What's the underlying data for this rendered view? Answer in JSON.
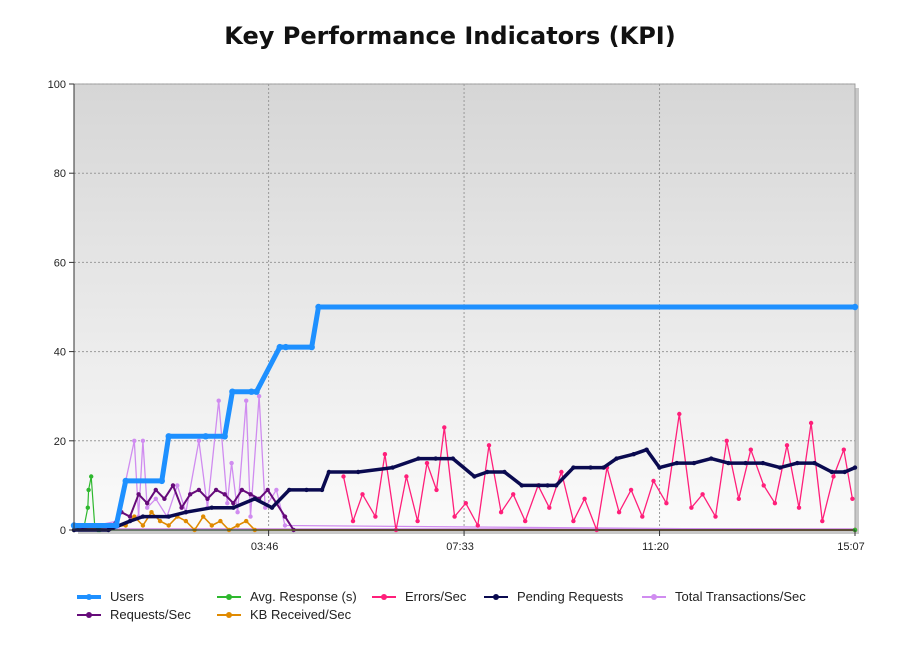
{
  "chart_data": {
    "type": "line",
    "title": "Key Performance Indicators (KPI)",
    "xlabel": "",
    "ylabel": "",
    "ylim": [
      0,
      100
    ],
    "yticks": [
      0,
      20,
      40,
      60,
      80,
      100
    ],
    "xlim": [
      "00:00",
      "15:07"
    ],
    "xticks": [
      "03:46",
      "07:33",
      "11:20",
      "15:07"
    ],
    "grid": true,
    "legend_placement": "bottom",
    "series": [
      {
        "name": "Users",
        "color": "#1e90ff",
        "x": [
          "00:00",
          "00:49",
          "01:00",
          "01:42",
          "01:50",
          "02:33",
          "02:55",
          "03:04",
          "03:26",
          "03:32",
          "03:59",
          "04:06",
          "04:36",
          "04:44",
          "15:07"
        ],
        "values": [
          1,
          1,
          11,
          11,
          21,
          21,
          21,
          31,
          31,
          31,
          41,
          41,
          41,
          50,
          50
        ]
      },
      {
        "name": "Avg. Response (s)",
        "color": "#2eb82e",
        "x": [
          "00:00",
          "00:12",
          "00:16",
          "00:17",
          "00:20",
          "00:24",
          "00:28",
          "00:30",
          "15:07"
        ],
        "values": [
          0,
          1,
          5,
          9,
          12,
          1,
          0,
          0,
          0
        ]
      },
      {
        "name": "Errors/Sec",
        "color": "#ff1f7a",
        "x": [
          "05:13",
          "05:24",
          "05:35",
          "05:50",
          "06:01",
          "06:14",
          "06:26",
          "06:39",
          "06:50",
          "07:01",
          "07:10",
          "07:22",
          "07:35",
          "07:49",
          "08:02",
          "08:16",
          "08:30",
          "08:44",
          "08:59",
          "09:12",
          "09:26",
          "09:40",
          "09:53",
          "10:07",
          "10:19",
          "10:33",
          "10:47",
          "11:00",
          "11:13",
          "11:28",
          "11:43",
          "11:57",
          "12:10",
          "12:25",
          "12:38",
          "12:52",
          "13:06",
          "13:21",
          "13:34",
          "13:48",
          "14:02",
          "14:16",
          "14:29",
          "14:42",
          "14:54",
          "15:04"
        ],
        "values": [
          12,
          2,
          8,
          3,
          17,
          0,
          12,
          2,
          15,
          9,
          23,
          3,
          6,
          1,
          19,
          4,
          8,
          2,
          10,
          5,
          13,
          2,
          7,
          0,
          14,
          4,
          9,
          3,
          11,
          6,
          26,
          5,
          8,
          3,
          20,
          7,
          18,
          10,
          6,
          19,
          5,
          24,
          2,
          12,
          18,
          7
        ]
      },
      {
        "name": "Pending Requests",
        "color": "#0a0a50",
        "x": [
          "00:00",
          "00:40",
          "01:05",
          "01:20",
          "01:50",
          "02:10",
          "02:40",
          "03:05",
          "03:30",
          "03:50",
          "04:10",
          "04:30",
          "04:48",
          "04:56",
          "05:30",
          "06:10",
          "06:40",
          "07:00",
          "07:20",
          "07:45",
          "08:00",
          "08:20",
          "08:40",
          "09:00",
          "09:10",
          "09:20",
          "09:40",
          "10:00",
          "10:15",
          "10:30",
          "10:50",
          "11:05",
          "11:20",
          "11:40",
          "12:00",
          "12:20",
          "12:40",
          "13:00",
          "13:20",
          "13:40",
          "14:00",
          "14:20",
          "14:40",
          "14:55",
          "15:07"
        ],
        "values": [
          0,
          0,
          2,
          3,
          3,
          4,
          5,
          5,
          7,
          5,
          9,
          9,
          9,
          13,
          13,
          14,
          16,
          16,
          16,
          12,
          13,
          13,
          10,
          10,
          10,
          10,
          14,
          14,
          14,
          16,
          17,
          18,
          14,
          15,
          15,
          16,
          15,
          15,
          15,
          14,
          15,
          15,
          13,
          13,
          14
        ]
      },
      {
        "name": "Total Transactions/Sec",
        "color": "#d08cf0",
        "x": [
          "00:00",
          "00:50",
          "01:10",
          "01:15",
          "01:20",
          "01:25",
          "01:35",
          "01:48",
          "02:00",
          "02:10",
          "02:25",
          "02:35",
          "02:48",
          "02:58",
          "03:03",
          "03:10",
          "03:20",
          "03:25",
          "03:35",
          "03:42",
          "03:55",
          "04:05",
          "15:07"
        ],
        "values": [
          0,
          2,
          20,
          3,
          20,
          5,
          7,
          3,
          10,
          4,
          20,
          5,
          29,
          6,
          15,
          4,
          29,
          3,
          30,
          5,
          9,
          1,
          0
        ]
      },
      {
        "name": "Requests/Sec",
        "color": "#660b7a",
        "x": [
          "00:00",
          "00:45",
          "00:55",
          "01:05",
          "01:15",
          "01:25",
          "01:35",
          "01:45",
          "01:55",
          "02:05",
          "02:15",
          "02:25",
          "02:35",
          "02:45",
          "02:55",
          "03:05",
          "03:15",
          "03:25",
          "03:35",
          "03:45",
          "03:55",
          "04:05",
          "04:15",
          "15:07"
        ],
        "values": [
          0,
          1,
          4,
          3,
          8,
          6,
          9,
          7,
          10,
          5,
          8,
          9,
          7,
          9,
          8,
          6,
          9,
          8,
          7,
          9,
          6,
          3,
          0,
          0
        ]
      },
      {
        "name": "KB Received/Sec",
        "color": "#e08a00",
        "x": [
          "00:00",
          "01:00",
          "01:10",
          "01:20",
          "01:30",
          "01:40",
          "01:50",
          "02:00",
          "02:10",
          "02:20",
          "02:30",
          "02:40",
          "02:50",
          "03:00",
          "03:10",
          "03:20",
          "03:30",
          "15:07"
        ],
        "values": [
          0,
          1,
          3,
          1,
          4,
          2,
          1,
          3,
          2,
          0,
          3,
          1,
          2,
          0,
          1,
          2,
          0,
          0
        ]
      }
    ]
  },
  "legend": {
    "items": [
      {
        "name": "Users",
        "color": "#1e90ff"
      },
      {
        "name": "Avg. Response (s)",
        "color": "#2eb82e"
      },
      {
        "name": "Errors/Sec",
        "color": "#ff1f7a"
      },
      {
        "name": "Pending Requests",
        "color": "#0a0a50"
      },
      {
        "name": "Total Transactions/Sec",
        "color": "#d08cf0"
      },
      {
        "name": "Requests/Sec",
        "color": "#660b7a"
      },
      {
        "name": "KB Received/Sec",
        "color": "#e08a00"
      }
    ]
  }
}
